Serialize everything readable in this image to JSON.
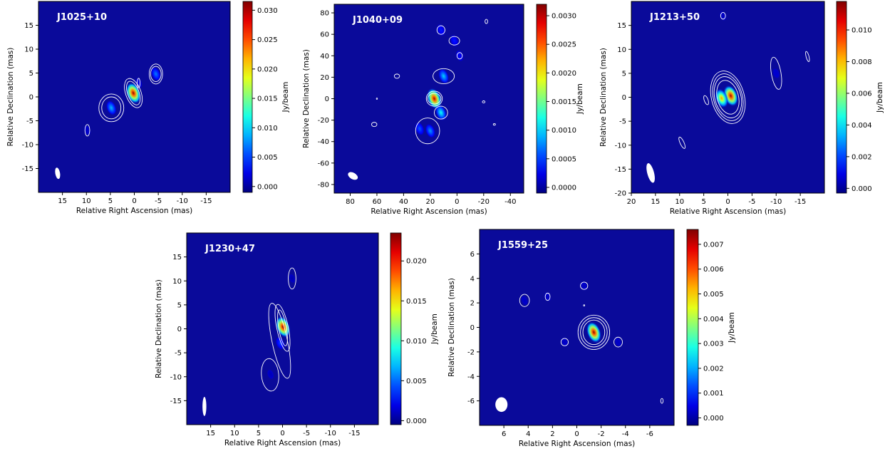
{
  "chart_data": [
    {
      "type": "heatmap",
      "title": "J1025+10",
      "xlabel": "Relative Right Ascension (mas)",
      "ylabel": "Relative Declination (mas)",
      "colorbar_label": "Jy/beam",
      "xlim": [
        20,
        -20
      ],
      "ylim": [
        -20,
        20
      ],
      "xticks": [
        15,
        10,
        5,
        0,
        -5,
        -10,
        -15
      ],
      "xtick_labels": [
        "15",
        "10",
        "5",
        "0",
        "-5",
        "-10",
        "-15"
      ],
      "yticks": [
        15,
        10,
        5,
        0,
        -5,
        -10,
        -15
      ],
      "ytick_labels": [
        "15",
        "10",
        "5",
        "0",
        "-5",
        "-10",
        "-15"
      ],
      "colorbar_range": [
        -0.001,
        0.0315
      ],
      "colorbar_ticks": [
        0.0,
        0.005,
        0.01,
        0.015,
        0.02,
        0.025,
        0.03
      ],
      "colorbar_tick_labels": [
        "0.000",
        "0.005",
        "0.010",
        "0.015",
        "0.020",
        "0.025",
        "0.030"
      ],
      "components": [
        {
          "x": 0.2,
          "y": 0.8,
          "peak": 0.031
        },
        {
          "x": -4.5,
          "y": 4.8,
          "peak": 0.007
        },
        {
          "x": 4.8,
          "y": -2.3,
          "peak": 0.009
        },
        {
          "x": 9.8,
          "y": -7.0,
          "peak": 0.0012
        },
        {
          "x": -0.9,
          "y": 2.9,
          "peak": 0.002
        }
      ],
      "beam": {
        "x": 16.0,
        "y": -16.0
      },
      "colormap": "jet"
    },
    {
      "type": "heatmap",
      "title": "J1040+09",
      "xlabel": "Relative Right Ascension (mas)",
      "ylabel": "Relative Declination (mas)",
      "colorbar_label": "Jy/beam",
      "xlim": [
        92,
        -50
      ],
      "ylim": [
        -88,
        88
      ],
      "xticks": [
        80,
        60,
        40,
        20,
        0,
        -20,
        -40
      ],
      "xtick_labels": [
        "80",
        "60",
        "40",
        "20",
        "0",
        "-20",
        "-40"
      ],
      "yticks": [
        80,
        60,
        40,
        20,
        0,
        -20,
        -40,
        -60,
        -80
      ],
      "ytick_labels": [
        "80",
        "60",
        "40",
        "20",
        "0",
        "-20",
        "-40",
        "-60",
        "-80"
      ],
      "colorbar_range": [
        -0.0001,
        0.0032
      ],
      "colorbar_ticks": [
        0.0,
        0.0005,
        0.001,
        0.0015,
        0.002,
        0.0025,
        0.003
      ],
      "colorbar_tick_labels": [
        "0.0000",
        "0.0005",
        "0.0010",
        "0.0015",
        "0.0020",
        "0.0025",
        "0.0030"
      ],
      "components": [
        {
          "x": 17,
          "y": 0,
          "peak": 0.0031
        },
        {
          "x": 12,
          "y": -13,
          "peak": 0.0012
        },
        {
          "x": 10,
          "y": 21,
          "peak": 0.001
        },
        {
          "x": 20,
          "y": -30,
          "peak": 0.0008
        },
        {
          "x": 28,
          "y": -28,
          "peak": 0.0006
        },
        {
          "x": 12,
          "y": 64,
          "peak": 0.0004
        },
        {
          "x": 2,
          "y": 54,
          "peak": 0.0004
        },
        {
          "x": -2,
          "y": 40,
          "peak": 0.0003
        }
      ],
      "beam": {
        "x": 78,
        "y": -72
      },
      "colormap": "jet"
    },
    {
      "type": "heatmap",
      "title": "J1213+50",
      "xlabel": "Relative Right Ascension (mas)",
      "ylabel": "Relative Declination (mas)",
      "colorbar_label": "Jy/beam",
      "xlim": [
        20,
        -20
      ],
      "ylim": [
        -20,
        20
      ],
      "xticks": [
        20,
        15,
        10,
        5,
        0,
        -5,
        -10,
        -15
      ],
      "xtick_labels": [
        "20",
        "15",
        "10",
        "5",
        "0",
        "-5",
        "-10",
        "-15"
      ],
      "yticks": [
        15,
        10,
        5,
        0,
        -5,
        -10,
        -15,
        -20
      ],
      "ytick_labels": [
        "15",
        "10",
        "5",
        "0",
        "-5",
        "-10",
        "-15",
        "-20"
      ],
      "colorbar_range": [
        -0.0003,
        0.0118
      ],
      "colorbar_ticks": [
        0.0,
        0.002,
        0.004,
        0.006,
        0.008,
        0.01
      ],
      "colorbar_tick_labels": [
        "0.000",
        "0.002",
        "0.004",
        "0.006",
        "0.008",
        "0.010"
      ],
      "components": [
        {
          "x": -0.6,
          "y": 0.3,
          "peak": 0.0115
        },
        {
          "x": 1.3,
          "y": -0.2,
          "peak": 0.0085
        },
        {
          "x": -10.0,
          "y": 5.0,
          "peak": 0.0006
        },
        {
          "x": 1.0,
          "y": 17.0,
          "peak": 0.0004
        }
      ],
      "beam": {
        "x": 16.0,
        "y": -15.8
      },
      "colormap": "jet"
    },
    {
      "type": "heatmap",
      "title": "J1230+47",
      "xlabel": "Relative Right Ascension (mas)",
      "ylabel": "Relative Declination (mas)",
      "colorbar_label": "Jy/beam",
      "xlim": [
        20,
        -20
      ],
      "ylim": [
        -20,
        20
      ],
      "xticks": [
        15,
        10,
        5,
        0,
        -5,
        -10,
        -15
      ],
      "xtick_labels": [
        "15",
        "10",
        "5",
        "0",
        "-5",
        "-10",
        "-15"
      ],
      "yticks": [
        15,
        10,
        5,
        0,
        -5,
        -10,
        -15
      ],
      "ytick_labels": [
        "15",
        "10",
        "5",
        "0",
        "-5",
        "-10",
        "-15"
      ],
      "colorbar_range": [
        -0.0005,
        0.0235
      ],
      "colorbar_ticks": [
        0.0,
        0.005,
        0.01,
        0.015,
        0.02
      ],
      "colorbar_tick_labels": [
        "0.000",
        "0.005",
        "0.010",
        "0.015",
        "0.020"
      ],
      "components": [
        {
          "x": -0.1,
          "y": 0.4,
          "peak": 0.023
        },
        {
          "x": 0.5,
          "y": -3.0,
          "peak": 0.004
        },
        {
          "x": 2.5,
          "y": -9.5,
          "peak": 0.0008
        },
        {
          "x": -2.0,
          "y": 10.5,
          "peak": 0.0005
        }
      ],
      "beam": {
        "x": 16.3,
        "y": -16.2
      },
      "colormap": "jet"
    },
    {
      "type": "heatmap",
      "title": "J1559+25",
      "xlabel": "Relative Right Ascension (mas)",
      "ylabel": "Relative Declination (mas)",
      "colorbar_label": "Jy/beam",
      "xlim": [
        8,
        -8
      ],
      "ylim": [
        -8,
        8
      ],
      "xticks": [
        6,
        4,
        2,
        0,
        -2,
        -4,
        -6
      ],
      "xtick_labels": [
        "6",
        "4",
        "2",
        "0",
        "-2",
        "-4",
        "-6"
      ],
      "yticks": [
        6,
        4,
        2,
        0,
        -2,
        -4,
        -6
      ],
      "ytick_labels": [
        "6",
        "4",
        "2",
        "0",
        "-2",
        "-4",
        "-6"
      ],
      "colorbar_range": [
        -0.0003,
        0.0076
      ],
      "colorbar_ticks": [
        0.0,
        0.001,
        0.002,
        0.003,
        0.004,
        0.005,
        0.006,
        0.007
      ],
      "colorbar_tick_labels": [
        "0.000",
        "0.001",
        "0.002",
        "0.003",
        "0.004",
        "0.005",
        "0.006",
        "0.007"
      ],
      "components": [
        {
          "x": -1.4,
          "y": -0.4,
          "peak": 0.0075
        },
        {
          "x": 4.3,
          "y": 2.2,
          "peak": 0.0002
        },
        {
          "x": 2.4,
          "y": 2.5,
          "peak": 0.0002
        },
        {
          "x": -0.6,
          "y": 3.4,
          "peak": 0.0002
        },
        {
          "x": 1.0,
          "y": -1.2,
          "peak": 0.0002
        },
        {
          "x": -3.4,
          "y": -1.2,
          "peak": 0.0002
        }
      ],
      "beam": {
        "x": 6.2,
        "y": -6.3
      },
      "colormap": "jet"
    }
  ]
}
